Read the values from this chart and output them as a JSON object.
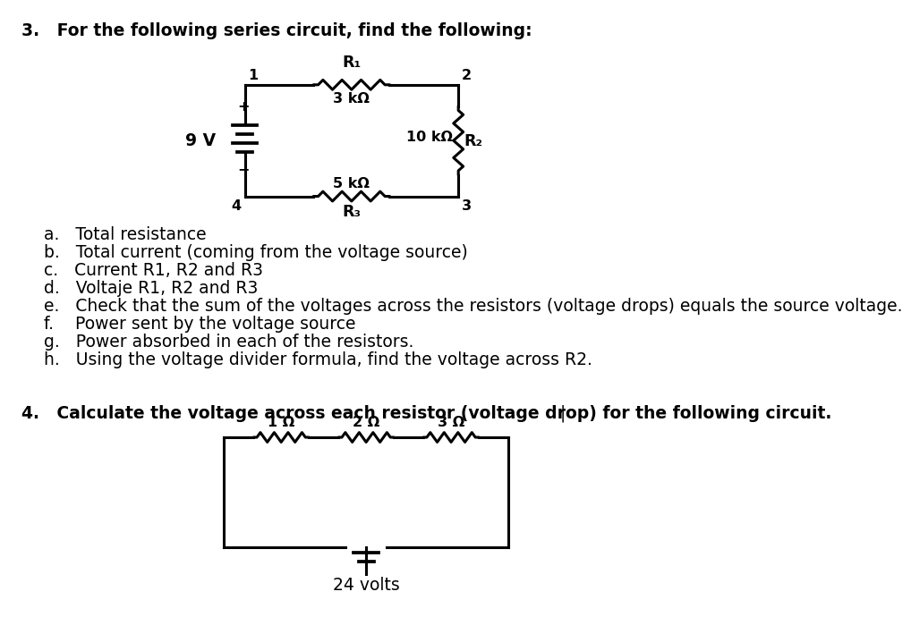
{
  "bg_color": "#ffffff",
  "text_color": "#000000",
  "line_color": "#000000",
  "line_width": 2.2,
  "q3_title": "3.   For the following series circuit, find the following:",
  "q3_items": [
    "a.   Total resistance",
    "b.   Total current (coming from the voltage source)",
    "c.   Current R1, R2 and R3",
    "d.   Voltaje R1, R2 and R3",
    "e.   Check that the sum of the voltages across the resistors (voltage drops) equals the source voltage.",
    "f.    Power sent by the voltage source",
    "g.   Power absorbed in each of the resistors.",
    "h.   Using the voltage divider formula, find the voltage across R2."
  ],
  "q4_title": "4.   Calculate the voltage across each resistor (voltage drop) for the following circuit.",
  "font_size": 13.5,
  "font_family": "DejaVu Sans"
}
